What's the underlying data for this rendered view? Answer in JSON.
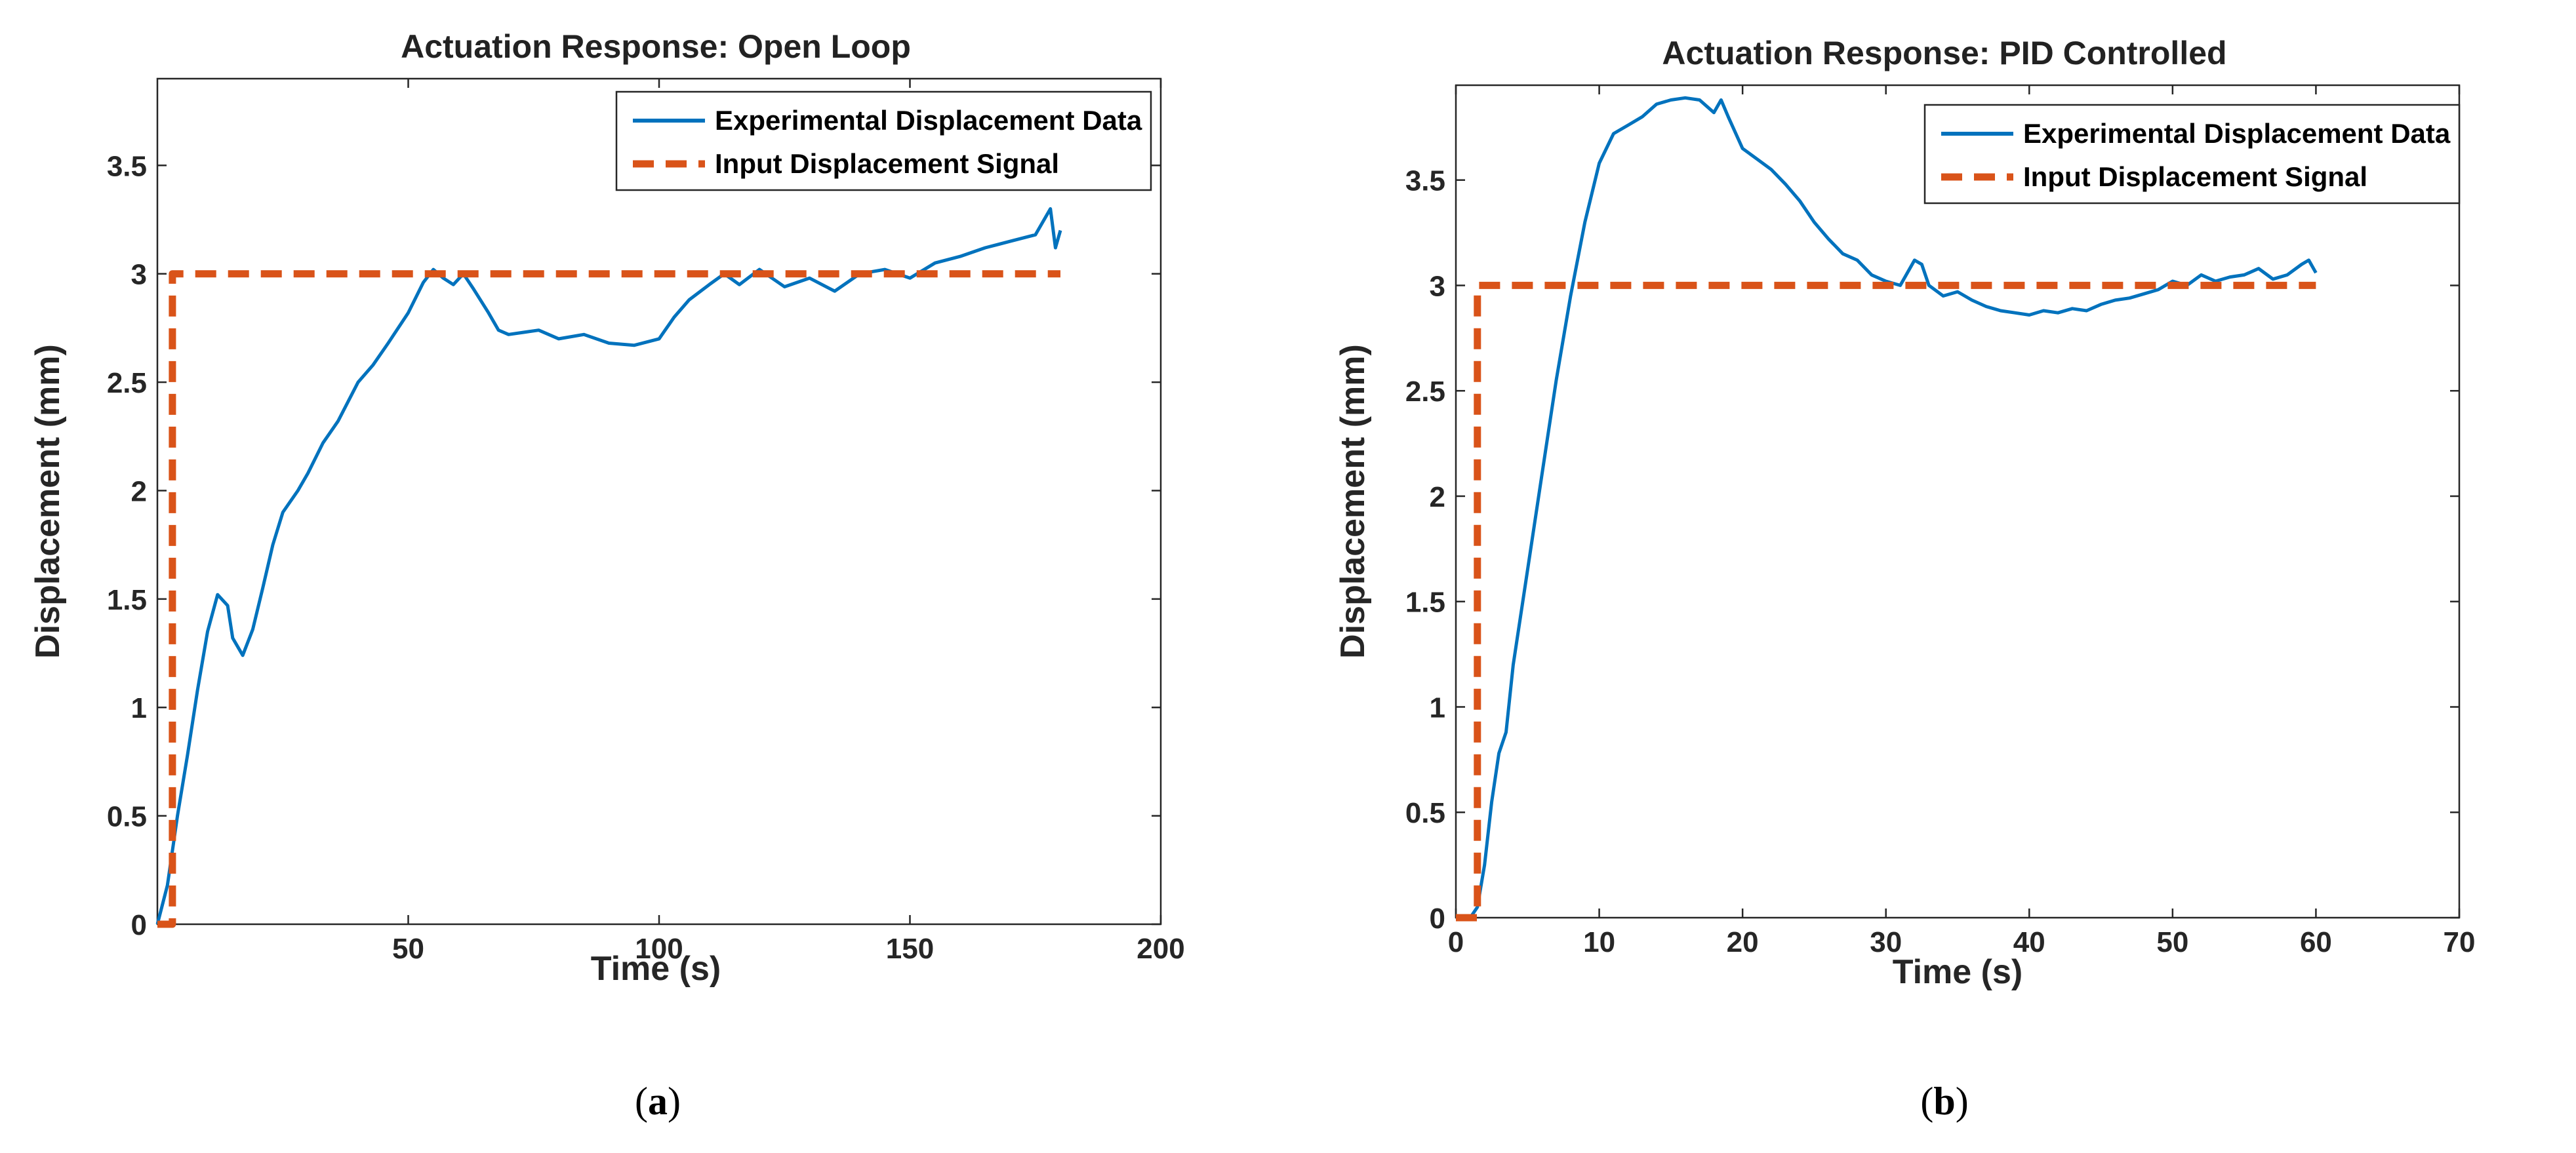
{
  "colors": {
    "experimental": "#0072BD",
    "input": "#D95319",
    "axis": "#262626"
  },
  "chart_data": [
    {
      "type": "line",
      "panel_label": "a",
      "title": "Actuation Response: Open Loop",
      "xlabel": "Time (s)",
      "ylabel": "Displacement (mm)",
      "xlim": [
        0,
        200
      ],
      "ylim": [
        0,
        3.9
      ],
      "xticks": [
        50,
        100,
        150,
        200
      ],
      "xtick_labels": [
        "50",
        "100",
        "150",
        "200"
      ],
      "yticks": [
        0,
        0.5,
        1,
        1.5,
        2,
        2.5,
        3,
        3.5
      ],
      "ytick_labels": [
        "0",
        "0.5",
        "1",
        "1.5",
        "2",
        "2.5",
        "3",
        "3.5"
      ],
      "legend": [
        "Experimental Displacement Data",
        "Input Displacement Signal"
      ],
      "legend_position": "top-right",
      "series": [
        {
          "name": "Experimental Displacement Data",
          "style": "solid",
          "x": [
            0,
            2,
            4,
            6,
            8,
            10,
            12,
            14,
            15,
            17,
            19,
            21,
            23,
            25,
            28,
            30,
            33,
            36,
            40,
            43,
            46,
            50,
            53,
            55,
            57,
            59,
            61,
            63,
            66,
            68,
            70,
            73,
            76,
            80,
            85,
            90,
            95,
            100,
            103,
            106,
            110,
            113,
            116,
            120,
            125,
            130,
            135,
            140,
            145,
            150,
            155,
            160,
            165,
            170,
            175,
            178,
            179,
            180
          ],
          "y": [
            0,
            0.18,
            0.5,
            0.78,
            1.08,
            1.35,
            1.52,
            1.47,
            1.32,
            1.24,
            1.36,
            1.55,
            1.75,
            1.9,
            2.0,
            2.08,
            2.22,
            2.32,
            2.5,
            2.58,
            2.68,
            2.82,
            2.96,
            3.02,
            2.98,
            2.95,
            3.0,
            2.93,
            2.82,
            2.74,
            2.72,
            2.73,
            2.74,
            2.7,
            2.72,
            2.68,
            2.67,
            2.7,
            2.8,
            2.88,
            2.95,
            3.0,
            2.95,
            3.02,
            2.94,
            2.98,
            2.92,
            3.0,
            3.02,
            2.98,
            3.05,
            3.08,
            3.12,
            3.15,
            3.18,
            3.3,
            3.12,
            3.2
          ]
        },
        {
          "name": "Input Displacement Signal",
          "style": "dashed",
          "x": [
            0,
            3,
            3,
            180
          ],
          "y": [
            0,
            0,
            3,
            3
          ]
        }
      ]
    },
    {
      "type": "line",
      "panel_label": "b",
      "title": "Actuation Response: PID Controlled",
      "xlabel": "Time (s)",
      "ylabel": "Displacement (mm)",
      "xlim": [
        0,
        70
      ],
      "ylim": [
        0,
        3.95
      ],
      "xticks": [
        0,
        10,
        20,
        30,
        40,
        50,
        60,
        70
      ],
      "xtick_labels": [
        "0",
        "10",
        "20",
        "30",
        "40",
        "50",
        "60",
        "70"
      ],
      "yticks": [
        0,
        0.5,
        1,
        1.5,
        2,
        2.5,
        3,
        3.5
      ],
      "ytick_labels": [
        "0",
        "0.5",
        "1",
        "1.5",
        "2",
        "2.5",
        "3",
        "3.5"
      ],
      "legend": [
        "Experimental Displacement Data",
        "Input Displacement Signal"
      ],
      "legend_position": "top-right",
      "series": [
        {
          "name": "Experimental Displacement Data",
          "style": "solid",
          "x": [
            0,
            1,
            1.5,
            2,
            2.5,
            3,
            3.5,
            4,
            5,
            6,
            7,
            8,
            9,
            10,
            11,
            12,
            13,
            14,
            15,
            16,
            17,
            18,
            18.5,
            19,
            20,
            21,
            22,
            23,
            24,
            25,
            26,
            27,
            28,
            29,
            30,
            31,
            32,
            32.5,
            33,
            34,
            35,
            36,
            37,
            38,
            39,
            40,
            41,
            42,
            43,
            44,
            45,
            46,
            47,
            48,
            49,
            50,
            51,
            52,
            53,
            54,
            55,
            56,
            57,
            58,
            59,
            59.5,
            60
          ],
          "y": [
            0,
            0,
            0.05,
            0.25,
            0.55,
            0.78,
            0.88,
            1.2,
            1.65,
            2.1,
            2.55,
            2.95,
            3.3,
            3.58,
            3.72,
            3.76,
            3.8,
            3.86,
            3.88,
            3.89,
            3.88,
            3.82,
            3.88,
            3.8,
            3.65,
            3.6,
            3.55,
            3.48,
            3.4,
            3.3,
            3.22,
            3.15,
            3.12,
            3.05,
            3.02,
            3.0,
            3.12,
            3.1,
            3.0,
            2.95,
            2.97,
            2.93,
            2.9,
            2.88,
            2.87,
            2.86,
            2.88,
            2.87,
            2.89,
            2.88,
            2.91,
            2.93,
            2.94,
            2.96,
            2.98,
            3.02,
            3.0,
            3.05,
            3.02,
            3.04,
            3.05,
            3.08,
            3.03,
            3.05,
            3.1,
            3.12,
            3.06
          ]
        },
        {
          "name": "Input Displacement Signal",
          "style": "dashed",
          "x": [
            0,
            1.5,
            1.5,
            60
          ],
          "y": [
            0,
            0,
            3,
            3
          ]
        }
      ]
    }
  ]
}
